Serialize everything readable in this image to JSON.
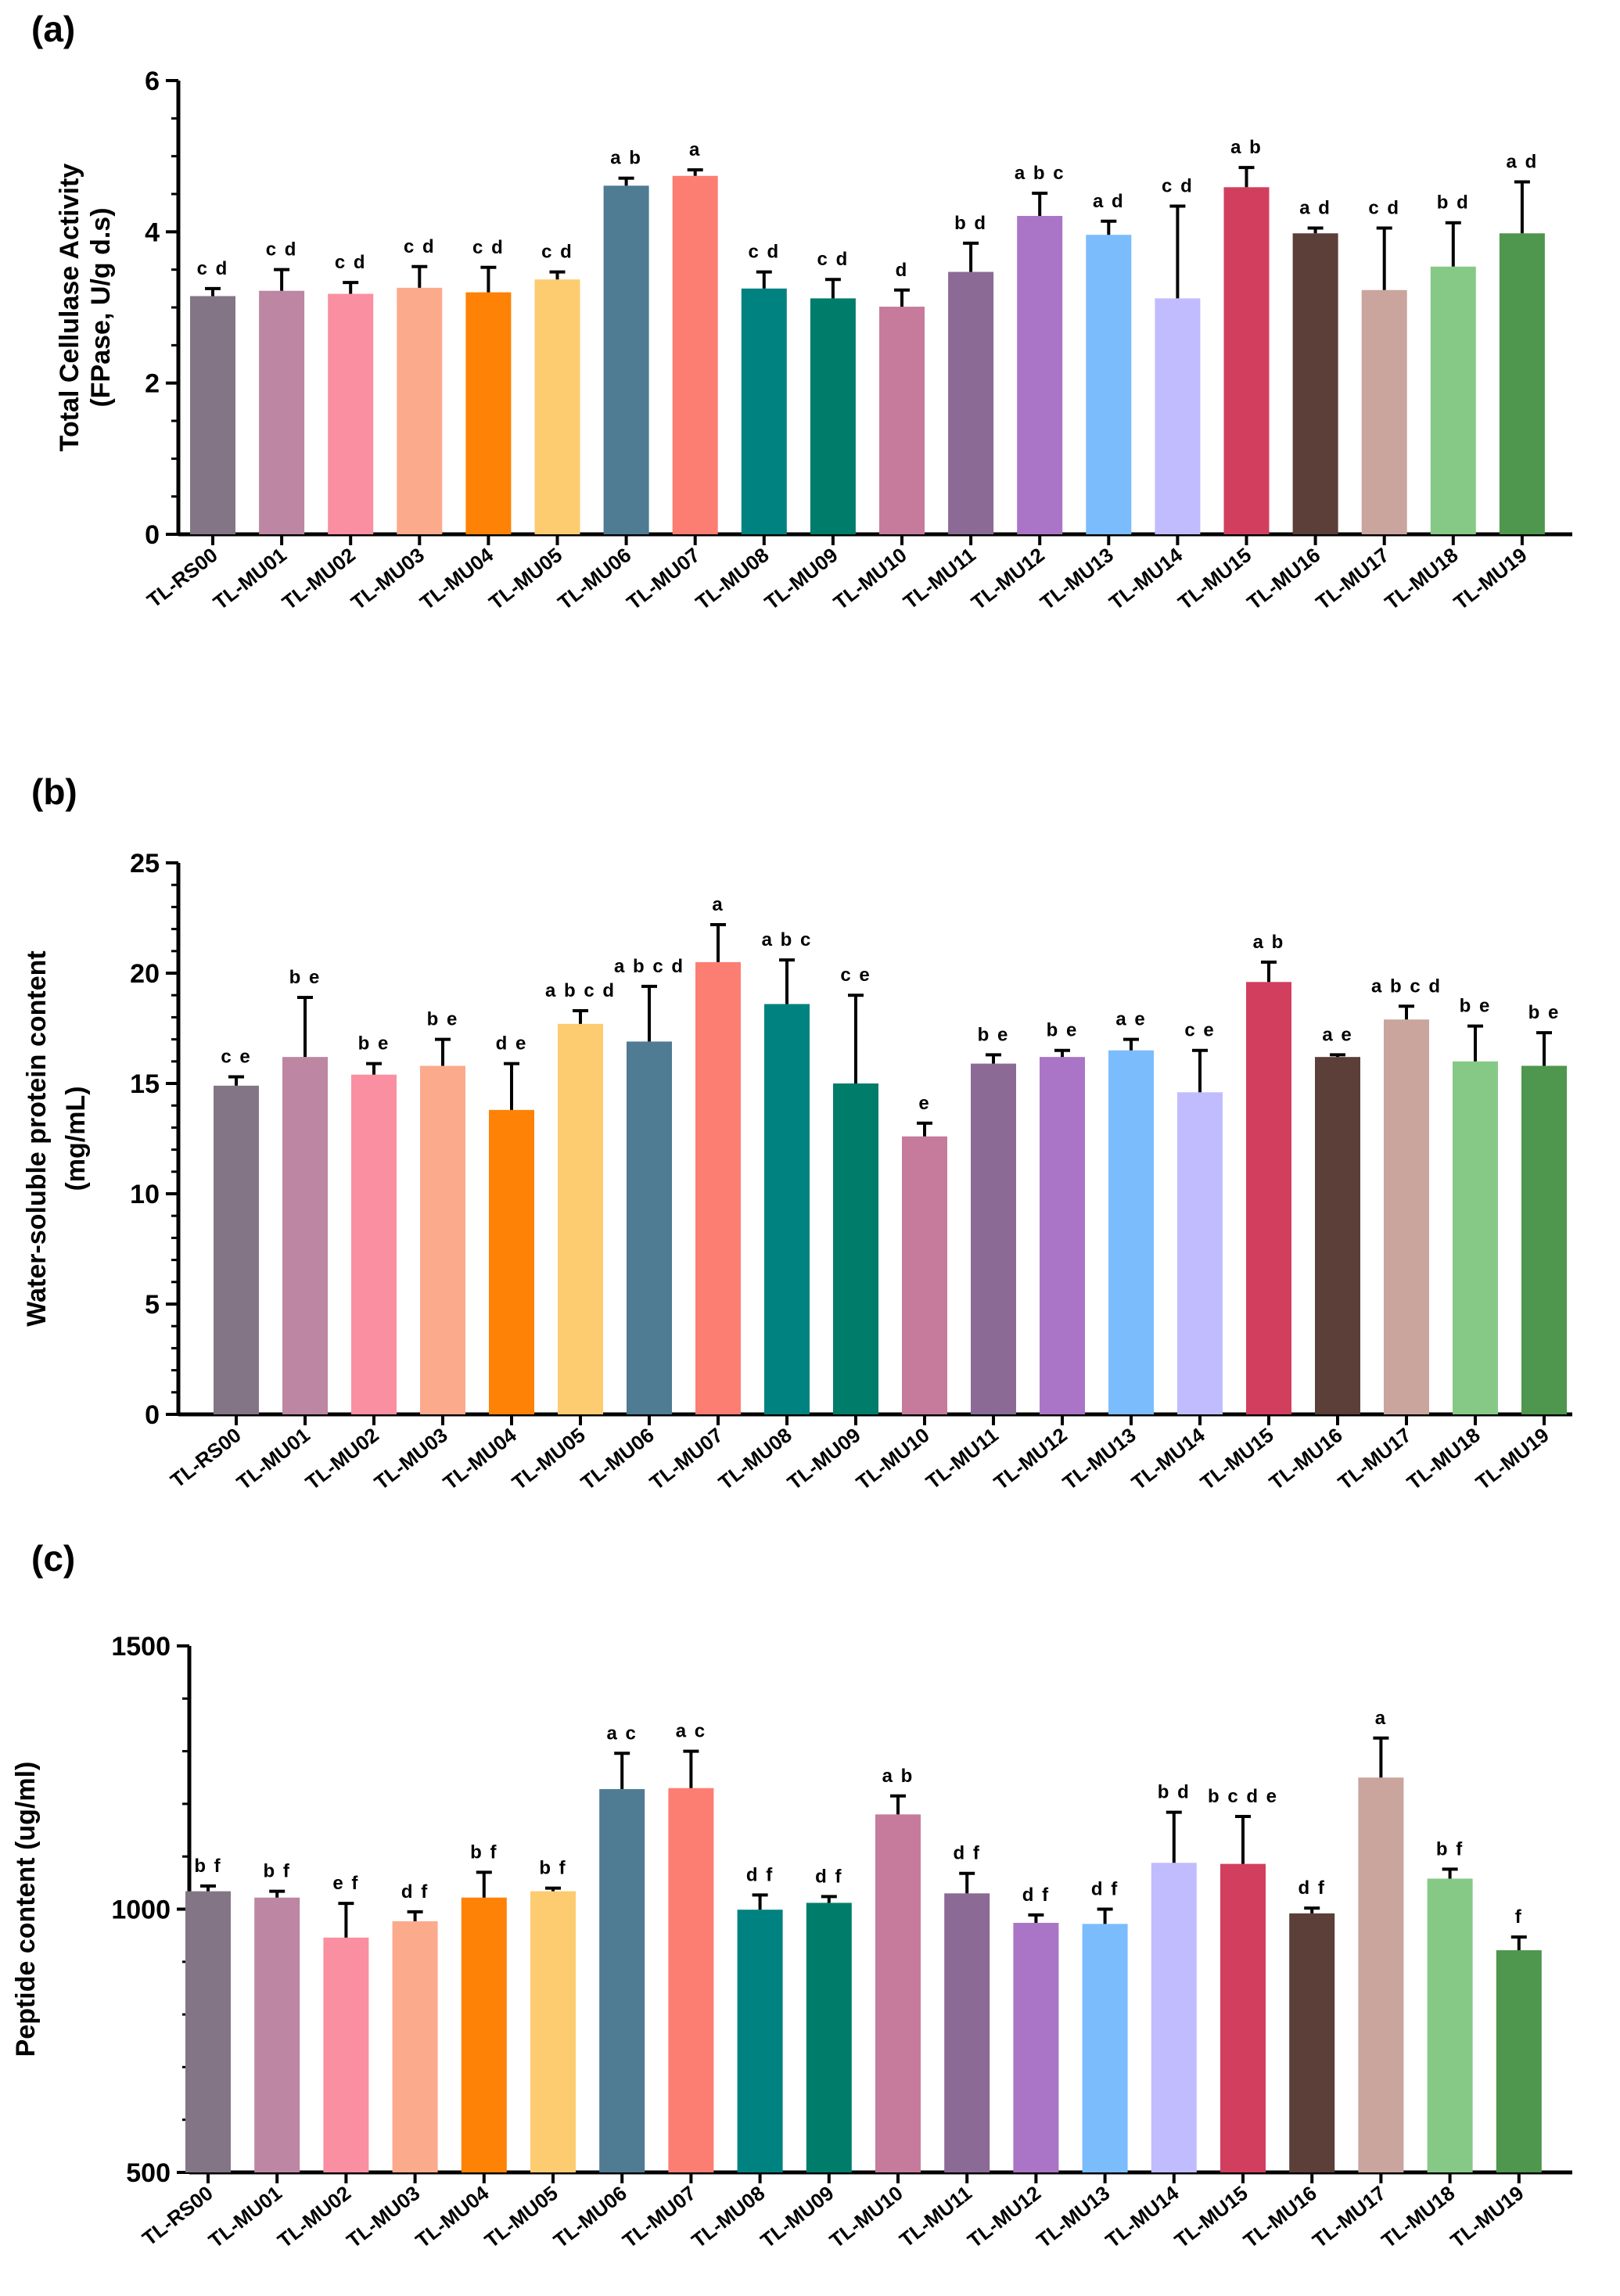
{
  "chart_data": [
    {
      "panel": "(a)",
      "type": "bar",
      "ylabel_lines": [
        "Total Cellulase Activity",
        "(FPase, U/g d.s)"
      ],
      "xlabel": "",
      "ylim": [
        0,
        6
      ],
      "yticks": [
        "0",
        "2",
        "4",
        "6"
      ],
      "categories": [
        "TL-RS00",
        "TL-MU01",
        "TL-MU02",
        "TL-MU03",
        "TL-MU04",
        "TL-MU05",
        "TL-MU06",
        "TL-MU07",
        "TL-MU08",
        "TL-MU09",
        "TL-MU10",
        "TL-MU11",
        "TL-MU12",
        "TL-MU13",
        "TL-MU14",
        "TL-MU15",
        "TL-MU16",
        "TL-MU17",
        "TL-MU18",
        "TL-MU19"
      ],
      "values": [
        3.15,
        3.22,
        3.18,
        3.26,
        3.2,
        3.37,
        4.61,
        4.74,
        3.25,
        3.12,
        3.01,
        3.47,
        4.21,
        3.96,
        3.12,
        4.59,
        3.98,
        3.23,
        3.54,
        3.98
      ],
      "errors": [
        0.1,
        0.28,
        0.15,
        0.28,
        0.33,
        0.1,
        0.1,
        0.08,
        0.22,
        0.25,
        0.22,
        0.38,
        0.3,
        0.18,
        1.22,
        0.26,
        0.07,
        0.82,
        0.58,
        0.68
      ],
      "significance": [
        "c d",
        "c d",
        "c d",
        "c d",
        "c d",
        "c d",
        "a b",
        "a",
        "c d",
        "c d",
        "d",
        "b d",
        "a b c",
        "a d",
        "c d",
        "a b",
        "a d",
        "c d",
        "b d",
        "a d"
      ]
    },
    {
      "panel": "(b)",
      "type": "bar",
      "ylabel_lines": [
        "Water-soluble protein content",
        "(mg/mL)"
      ],
      "xlabel": "",
      "ylim": [
        0,
        25
      ],
      "yticks": [
        "0",
        "5",
        "10",
        "15",
        "20",
        "25"
      ],
      "categories": [
        "TL-RS00",
        "TL-MU01",
        "TL-MU02",
        "TL-MU03",
        "TL-MU04",
        "TL-MU05",
        "TL-MU06",
        "TL-MU07",
        "TL-MU08",
        "TL-MU09",
        "TL-MU10",
        "TL-MU11",
        "TL-MU12",
        "TL-MU13",
        "TL-MU14",
        "TL-MU15",
        "TL-MU16",
        "TL-MU17",
        "TL-MU18",
        "TL-MU19"
      ],
      "values": [
        14.9,
        16.2,
        15.4,
        15.8,
        13.8,
        17.7,
        16.9,
        20.5,
        18.6,
        15.0,
        12.6,
        15.9,
        16.2,
        16.5,
        14.6,
        19.6,
        16.2,
        17.9,
        16.0,
        15.8
      ],
      "errors": [
        0.4,
        2.7,
        0.5,
        1.2,
        2.1,
        0.6,
        2.5,
        1.7,
        2.0,
        4.0,
        0.6,
        0.4,
        0.3,
        0.5,
        1.9,
        0.9,
        0.1,
        0.6,
        1.6,
        1.5
      ],
      "significance": [
        "c e",
        "b e",
        "b e",
        "b e",
        "d e",
        "a b c d",
        "a b c d",
        "a",
        "a b c",
        "c e",
        "e",
        "b e",
        "b e",
        "a e",
        "c e",
        "a b",
        "a e",
        "a b c d",
        "b e",
        "b e"
      ]
    },
    {
      "panel": "(c)",
      "type": "bar",
      "ylabel_lines": [
        "Peptide content (ug/ml)"
      ],
      "xlabel": "",
      "ylim": [
        500,
        1500
      ],
      "yticks": [
        "500",
        "1000",
        "1500"
      ],
      "categories": [
        "TL-RS00",
        "TL-MU01",
        "TL-MU02",
        "TL-MU03",
        "TL-MU04",
        "TL-MU05",
        "TL-MU06",
        "TL-MU07",
        "TL-MU08",
        "TL-MU09",
        "TL-MU10",
        "TL-MU11",
        "TL-MU12",
        "TL-MU13",
        "TL-MU14",
        "TL-MU15",
        "TL-MU16",
        "TL-MU17",
        "TL-MU18",
        "TL-MU19"
      ],
      "values": [
        1034,
        1022,
        946,
        977,
        1022,
        1034,
        1228,
        1230,
        999,
        1012,
        1180,
        1030,
        974,
        972,
        1088,
        1086,
        992,
        1250,
        1058,
        922
      ],
      "errors": [
        10,
        12,
        65,
        18,
        48,
        6,
        68,
        70,
        28,
        12,
        35,
        38,
        15,
        28,
        96,
        90,
        10,
        75,
        18,
        25
      ],
      "significance": [
        "b f",
        "b f",
        "e f",
        "d f",
        "b f",
        "b f",
        "a c",
        "a c",
        "d f",
        "d f",
        "a b",
        "d f",
        "d f",
        "d f",
        "b d",
        "b c d e",
        "d f",
        "a",
        "b f",
        "f"
      ]
    }
  ],
  "colors": [
    "#837586",
    "#bd86a2",
    "#f98fa0",
    "#fcaa8c",
    "#fd8205",
    "#fdcb70",
    "#4f7b93",
    "#fc7e72",
    "#008280",
    "#007c6b",
    "#c67b9c",
    "#8b6b95",
    "#aa75c6",
    "#7bbcfc",
    "#c0bcfd",
    "#d23f5e",
    "#5b3f38",
    "#c9a59e",
    "#86c986",
    "#4f964e"
  ]
}
